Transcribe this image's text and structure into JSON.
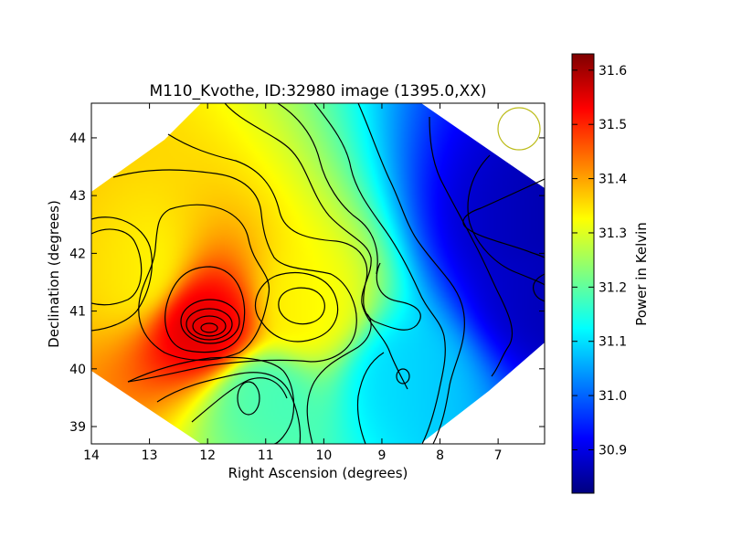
{
  "chart_data": {
    "type": "heatmap",
    "title": "M110_Kvothe, ID:32980 image (1395.0,XX)",
    "xlabel": "Right Ascension (degrees)",
    "ylabel": "Declination (degrees)",
    "xlim": [
      14.0,
      6.2
    ],
    "ylim": [
      38.7,
      44.6
    ],
    "x_ticks": [
      14,
      13,
      12,
      11,
      10,
      9,
      8,
      7
    ],
    "y_ticks": [
      39,
      40,
      41,
      42,
      43,
      44
    ],
    "colorbar": {
      "label": "Power in Kelvin",
      "range": [
        30.82,
        31.63
      ],
      "ticks": [
        30.9,
        31.0,
        31.1,
        31.2,
        31.3,
        31.4,
        31.5,
        31.6
      ],
      "colormap": "jet"
    },
    "field_extrema": [
      {
        "ra": 12.0,
        "dec": 40.7,
        "value": 31.63
      },
      {
        "ra": 10.3,
        "dec": 41.1,
        "value": 31.38
      },
      {
        "ra": 13.3,
        "dec": 41.7,
        "value": 31.33
      },
      {
        "ra": 11.1,
        "dec": 39.5,
        "value": 31.17
      },
      {
        "ra": 6.7,
        "dec": 42.5,
        "value": 30.84
      },
      {
        "ra": 6.3,
        "dec": 41.4,
        "value": 30.85
      },
      {
        "ra": 8.6,
        "dec": 39.8,
        "value": 31.1
      }
    ],
    "beam_marker": {
      "ra": 6.6,
      "dec": 44.2,
      "color": "#bcbc1a"
    },
    "grid": false
  }
}
